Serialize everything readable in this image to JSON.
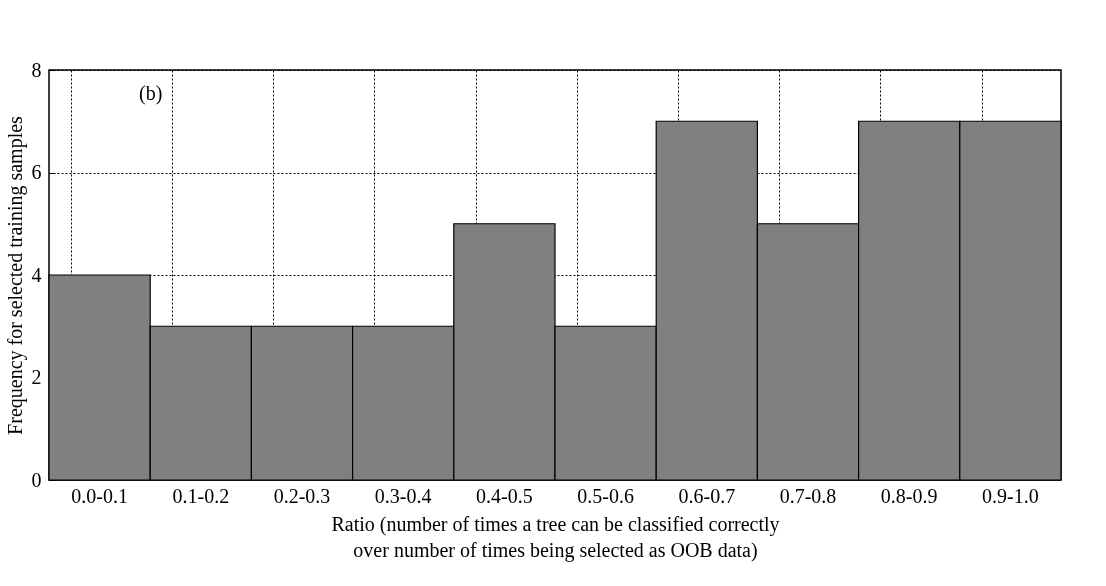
{
  "chart_data": {
    "type": "bar",
    "categories": [
      "0.0-0.1",
      "0.1-0.2",
      "0.2-0.3",
      "0.3-0.4",
      "0.4-0.5",
      "0.5-0.6",
      "0.6-0.7",
      "0.7-0.8",
      "0.8-0.9",
      "0.9-1.0"
    ],
    "values": [
      4,
      3,
      3,
      3,
      5,
      3,
      7,
      5,
      7,
      7
    ],
    "color": "#808080",
    "xlabel": "Ratio (number of times a tree can be classified correctly\nover number of times being selected as OOB data)",
    "ylabel": "Frequency for selected training samples",
    "ylim": [
      0,
      8
    ],
    "yticks": [
      0,
      2,
      4,
      6,
      8
    ],
    "grid": true,
    "annotations": [
      "(b)"
    ]
  }
}
